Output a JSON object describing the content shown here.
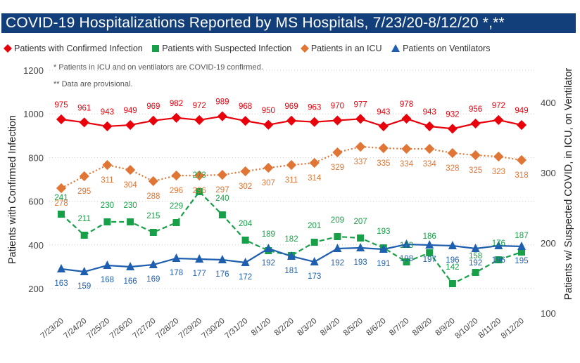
{
  "header": {
    "title": "COVID-19 Hospitalizations Reported by MS Hospitals, 7/23/20-8/12/20 *,**"
  },
  "notes": {
    "n1": "* Patients in ICU and on ventilators are COVID-19 confirmed.",
    "n2": "** Data are provisional."
  },
  "chart_data": {
    "type": "line",
    "title": "COVID-19 Hospitalizations Reported by MS Hospitals, 7/23/20-8/12/20 *,**",
    "categories": [
      "7/23/20",
      "7/24/20",
      "7/25/20",
      "7/26/20",
      "7/27/20",
      "7/28/20",
      "7/29/20",
      "7/30/20",
      "7/31/20",
      "8/1/20",
      "8/2/20",
      "8/3/20",
      "8/4/20",
      "8/5/20",
      "8/6/20",
      "8/7/20",
      "8/8/20",
      "8/9/20",
      "8/10/20",
      "8/11/20",
      "8/12/20"
    ],
    "ylabel_left": "Patients with Confirmed Infection",
    "ylabel_right": "Patients w/ Suspected COVID, in ICU, on Ventilator",
    "ylim_left": [
      200,
      1200
    ],
    "yticks_left": [
      200,
      400,
      600,
      800,
      1000,
      1200
    ],
    "ylim_right": [
      100,
      400
    ],
    "yticks_right": [
      100,
      200,
      300,
      400
    ],
    "grid": "dotted horizontal",
    "legend_position": "top",
    "series": [
      {
        "name": "Patients with Confirmed Infection",
        "axis": "left",
        "color": "#e8000b",
        "marker": "diamond",
        "line": "solid",
        "values": [
          975,
          961,
          943,
          949,
          969,
          982,
          972,
          989,
          968,
          950,
          969,
          963,
          970,
          977,
          943,
          978,
          943,
          932,
          956,
          972,
          949
        ]
      },
      {
        "name": "Patients with Suspected Infection",
        "axis": "right",
        "color": "#17a047",
        "marker": "square",
        "line": "dashed",
        "values": [
          241,
          211,
          230,
          230,
          215,
          229,
          273,
          240,
          204,
          189,
          182,
          201,
          209,
          207,
          193,
          173,
          186,
          142,
          158,
          176,
          187
        ]
      },
      {
        "name": "Patients in an ICU",
        "axis": "right",
        "color": "#e07535",
        "marker": "diamond",
        "line": "dotted",
        "values": [
          278,
          295,
          311,
          304,
          288,
          296,
          296,
          297,
          302,
          307,
          311,
          314,
          329,
          337,
          335,
          334,
          334,
          328,
          325,
          323,
          318
        ]
      },
      {
        "name": "Patients on Ventilators",
        "axis": "right",
        "color": "#1f5fb0",
        "marker": "triangle",
        "line": "solid",
        "values": [
          163,
          159,
          168,
          166,
          169,
          178,
          177,
          176,
          172,
          192,
          181,
          173,
          192,
          193,
          191,
          198,
          197,
          196,
          192,
          196,
          195
        ]
      }
    ]
  }
}
